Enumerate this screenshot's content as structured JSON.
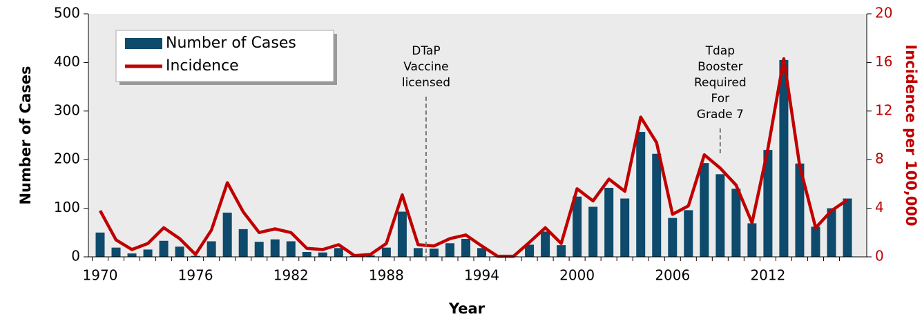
{
  "chart_data": {
    "type": "bar-line",
    "xlabel": "Year",
    "ylabel": "Number of Cases",
    "y2label": "Incidence per 100,000",
    "categories": [
      "1970",
      null,
      null,
      null,
      null,
      null,
      "1976",
      null,
      null,
      null,
      null,
      null,
      "1982",
      null,
      null,
      null,
      null,
      null,
      "1988",
      null,
      null,
      null,
      null,
      null,
      "1994",
      null,
      null,
      null,
      null,
      null,
      "2000",
      null,
      null,
      null,
      null,
      null,
      "2006",
      null,
      null,
      null,
      null,
      null,
      "2012",
      null,
      null,
      null,
      null,
      null
    ],
    "series": [
      {
        "name": "Number of Cases",
        "type": "bar",
        "color": "#0d4a6b",
        "values": [
          50,
          19,
          7,
          15,
          33,
          21,
          2,
          32,
          91,
          57,
          31,
          36,
          32,
          10,
          9,
          18,
          2,
          3,
          19,
          93,
          18,
          17,
          28,
          37,
          18,
          1,
          1,
          25,
          52,
          24,
          124,
          103,
          142,
          120,
          257,
          212,
          80,
          96,
          193,
          170,
          140,
          69,
          220,
          405,
          192,
          62,
          100,
          120
        ]
      },
      {
        "name": "Incidence",
        "type": "line",
        "axis": "y2",
        "color": "#c00000",
        "values": [
          3.8,
          1.4,
          0.6,
          1.1,
          2.4,
          1.5,
          0.2,
          2.2,
          6.1,
          3.7,
          2.0,
          2.3,
          2.0,
          0.7,
          0.6,
          1.0,
          0.1,
          0.2,
          1.1,
          5.1,
          1.0,
          0.9,
          1.5,
          1.8,
          0.9,
          0.05,
          0.05,
          1.2,
          2.4,
          1.1,
          5.6,
          4.6,
          6.4,
          5.4,
          11.5,
          9.4,
          3.5,
          4.2,
          8.4,
          7.3,
          5.9,
          2.8,
          8.9,
          16.3,
          7.5,
          2.4,
          3.8,
          4.7
        ]
      }
    ],
    "ylim": [
      0,
      500
    ],
    "yticks": [
      0,
      100,
      200,
      300,
      400,
      500
    ],
    "y2lim": [
      0,
      20
    ],
    "y2ticks": [
      0,
      4,
      8,
      12,
      16,
      20
    ],
    "annotations": [
      {
        "lines": [
          "DTaP",
          "Vaccine",
          "licensed"
        ],
        "x": 1990.5
      },
      {
        "lines": [
          "Tdap",
          "Booster",
          "Required",
          "For",
          "Grade 7"
        ],
        "x": 2009
      }
    ],
    "legend": "upper-left"
  }
}
